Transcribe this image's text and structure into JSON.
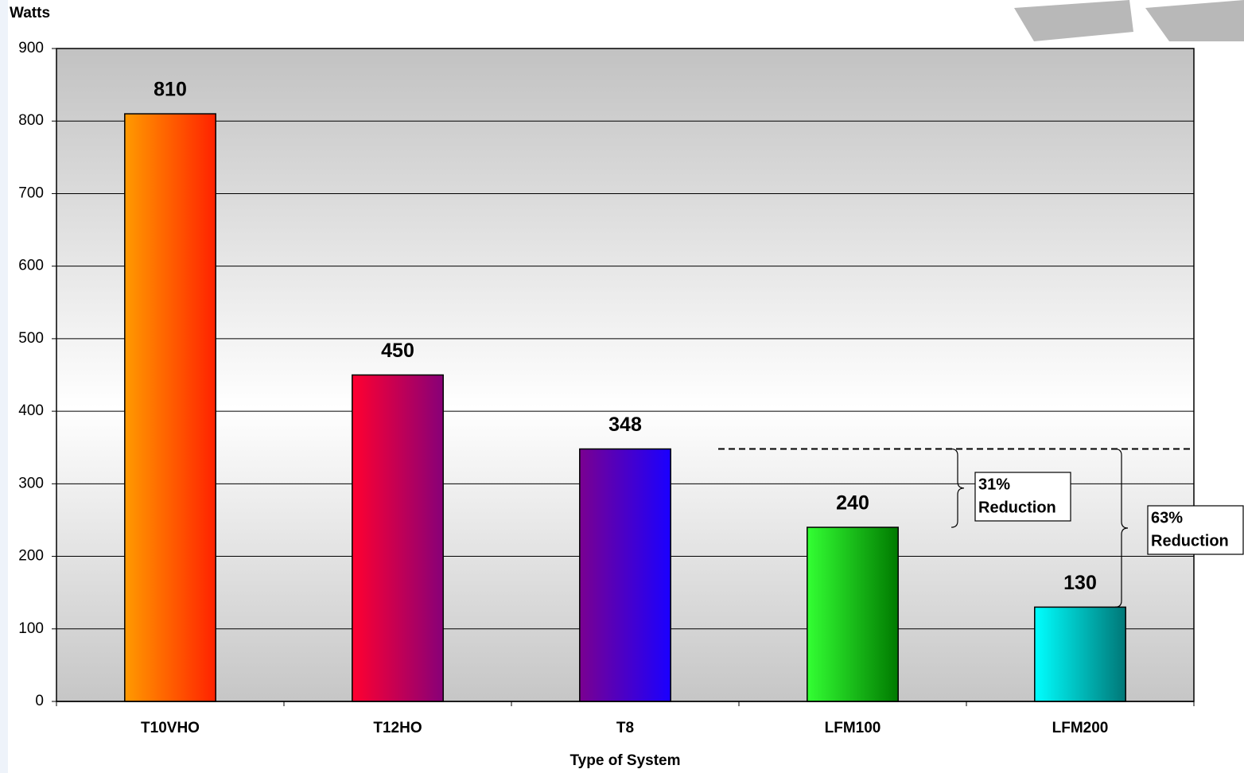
{
  "chart_data": {
    "type": "bar",
    "y_label": "Watts",
    "x_label": "Type of System",
    "categories": [
      "T10VHO",
      "T12HO",
      "T8",
      "LFM100",
      "LFM200"
    ],
    "values": [
      810,
      450,
      348,
      240,
      130
    ],
    "colors": [
      [
        "#ff9a00",
        "#ff2200"
      ],
      [
        "#ff0030",
        "#880078"
      ],
      [
        "#7a0090",
        "#1a00ff"
      ],
      [
        "#33ff33",
        "#007a00"
      ],
      [
        "#00ffff",
        "#007777"
      ]
    ],
    "ylim": [
      0,
      900
    ],
    "yticks": [
      0,
      100,
      200,
      300,
      400,
      500,
      600,
      700,
      800,
      900
    ],
    "grid": true,
    "annotations": [
      [
        "31%",
        "Reduction"
      ],
      [
        "63%",
        "Reduction"
      ]
    ]
  }
}
